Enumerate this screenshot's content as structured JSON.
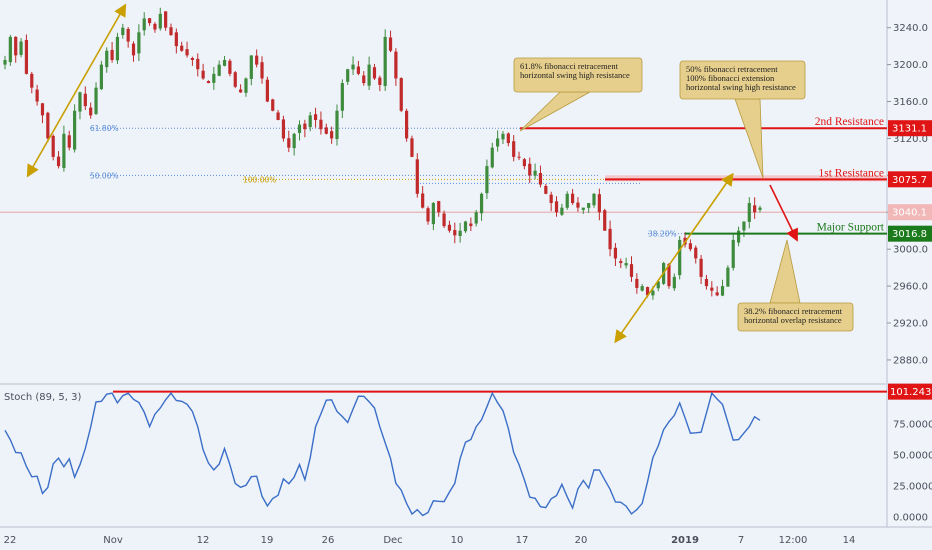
{
  "chart_data": [
    {
      "type": "candlestick",
      "yaxis_ticks": [
        "3240.0",
        "3200.0",
        "3160.0",
        "3120.0",
        "3080.0",
        "3040.0",
        "3000.0",
        "2960.0",
        "2920.0",
        "2880.0"
      ],
      "ylim": [
        2855,
        3270
      ],
      "xaxis_ticks": [
        "22",
        "Nov",
        "12",
        "19",
        "26",
        "Dec",
        "10",
        "17",
        "20",
        "2019",
        "7",
        "12:00",
        "14"
      ],
      "current_price": "3040.1",
      "levels": [
        {
          "name": "2nd Resistance",
          "value": 3131.1,
          "tag": "3131.1",
          "color": "#e01414"
        },
        {
          "name": "1st Resistance",
          "value": 3075.7,
          "tag": "3075.7",
          "color": "#e01414"
        },
        {
          "name": "Major Support",
          "value": 3016.8,
          "tag": "3016.8",
          "color": "#1b7a1b"
        }
      ],
      "fib_labels": [
        "61.80%",
        "50.00%",
        "100.00%",
        "38.20%"
      ],
      "annotations": [
        {
          "lines": [
            "61.8% fibonacci retracement",
            "horizontal swing high resistance"
          ]
        },
        {
          "lines": [
            "50% fibonacci retracement",
            "100% fibonacci extension",
            "horizontal swing high resistance"
          ]
        },
        {
          "lines": [
            "38.2% fibonacci retracement",
            "horizontal overlap resistance"
          ]
        }
      ],
      "close_series": [
        3205,
        3230,
        3210,
        3225,
        3190,
        3175,
        3160,
        3145,
        3120,
        3100,
        3090,
        3125,
        3110,
        3150,
        3170,
        3155,
        3145,
        3175,
        3200,
        3215,
        3205,
        3230,
        3240,
        3225,
        3210,
        3235,
        3250,
        3245,
        3238,
        3255,
        3240,
        3232,
        3220,
        3215,
        3210,
        3205,
        3195,
        3185,
        3180,
        3190,
        3200,
        3205,
        3190,
        3176,
        3170,
        3185,
        3210,
        3200,
        3185,
        3160,
        3150,
        3140,
        3120,
        3110,
        3125,
        3135,
        3130,
        3145,
        3140,
        3130,
        3125,
        3120,
        3150,
        3180,
        3195,
        3200,
        3190,
        3180,
        3200,
        3185,
        3178,
        3230,
        3215,
        3185,
        3150,
        3120,
        3100,
        3060,
        3045,
        3030,
        3050,
        3040,
        3025,
        3020,
        3015,
        3020,
        3030,
        3025,
        3040,
        3060,
        3090,
        3110,
        3120,
        3125,
        3115,
        3100,
        3100,
        3090,
        3080,
        3085,
        3070,
        3060,
        3050,
        3040,
        3045,
        3060,
        3050,
        3045,
        3045,
        3050,
        3060,
        3040,
        3020,
        3000,
        2990,
        2985,
        2985,
        2970,
        2958,
        2960,
        2950,
        2955,
        2965,
        2985,
        2960,
        2970,
        3010,
        3005,
        3000,
        2990,
        2970,
        2960,
        2955,
        2950,
        2960,
        2980,
        3010,
        3020,
        3030,
        3050,
        3040,
        3045
      ],
      "stoch": {
        "label": "Stoch (89, 5, 3)",
        "yaxis_ticks": [
          "101.2430",
          "75.0000",
          "50.0000",
          "25.0000",
          "0.0000"
        ],
        "ylim": [
          -5,
          105
        ],
        "top_level": 101.243
      },
      "stoch_series": [
        70,
        60,
        55,
        50,
        40,
        35,
        30,
        20,
        25,
        40,
        50,
        40,
        45,
        35,
        40,
        55,
        75,
        90,
        95,
        100,
        98,
        95,
        97,
        100,
        98,
        90,
        85,
        75,
        80,
        90,
        95,
        100,
        97,
        92,
        90,
        88,
        70,
        55,
        45,
        35,
        45,
        55,
        40,
        30,
        22,
        25,
        35,
        30,
        18,
        10,
        12,
        20,
        30,
        25,
        35,
        40,
        30,
        50,
        70,
        85,
        95,
        92,
        88,
        80,
        75,
        90,
        95,
        98,
        95,
        85,
        75,
        60,
        45,
        30,
        20,
        10,
        5,
        3,
        2,
        5,
        10,
        15,
        12,
        18,
        30,
        45,
        60,
        65,
        70,
        80,
        90,
        98,
        95,
        85,
        70,
        55,
        40,
        30,
        18,
        12,
        10,
        8,
        12,
        20,
        25,
        15,
        10,
        20,
        30,
        25,
        35,
        40,
        30,
        20,
        15,
        10,
        8,
        5,
        3,
        12,
        30,
        45,
        60,
        70,
        75,
        85,
        90,
        80,
        70,
        65,
        70,
        85,
        100,
        98,
        90,
        75,
        65,
        60,
        68,
        75,
        78,
        80
      ]
    }
  ]
}
